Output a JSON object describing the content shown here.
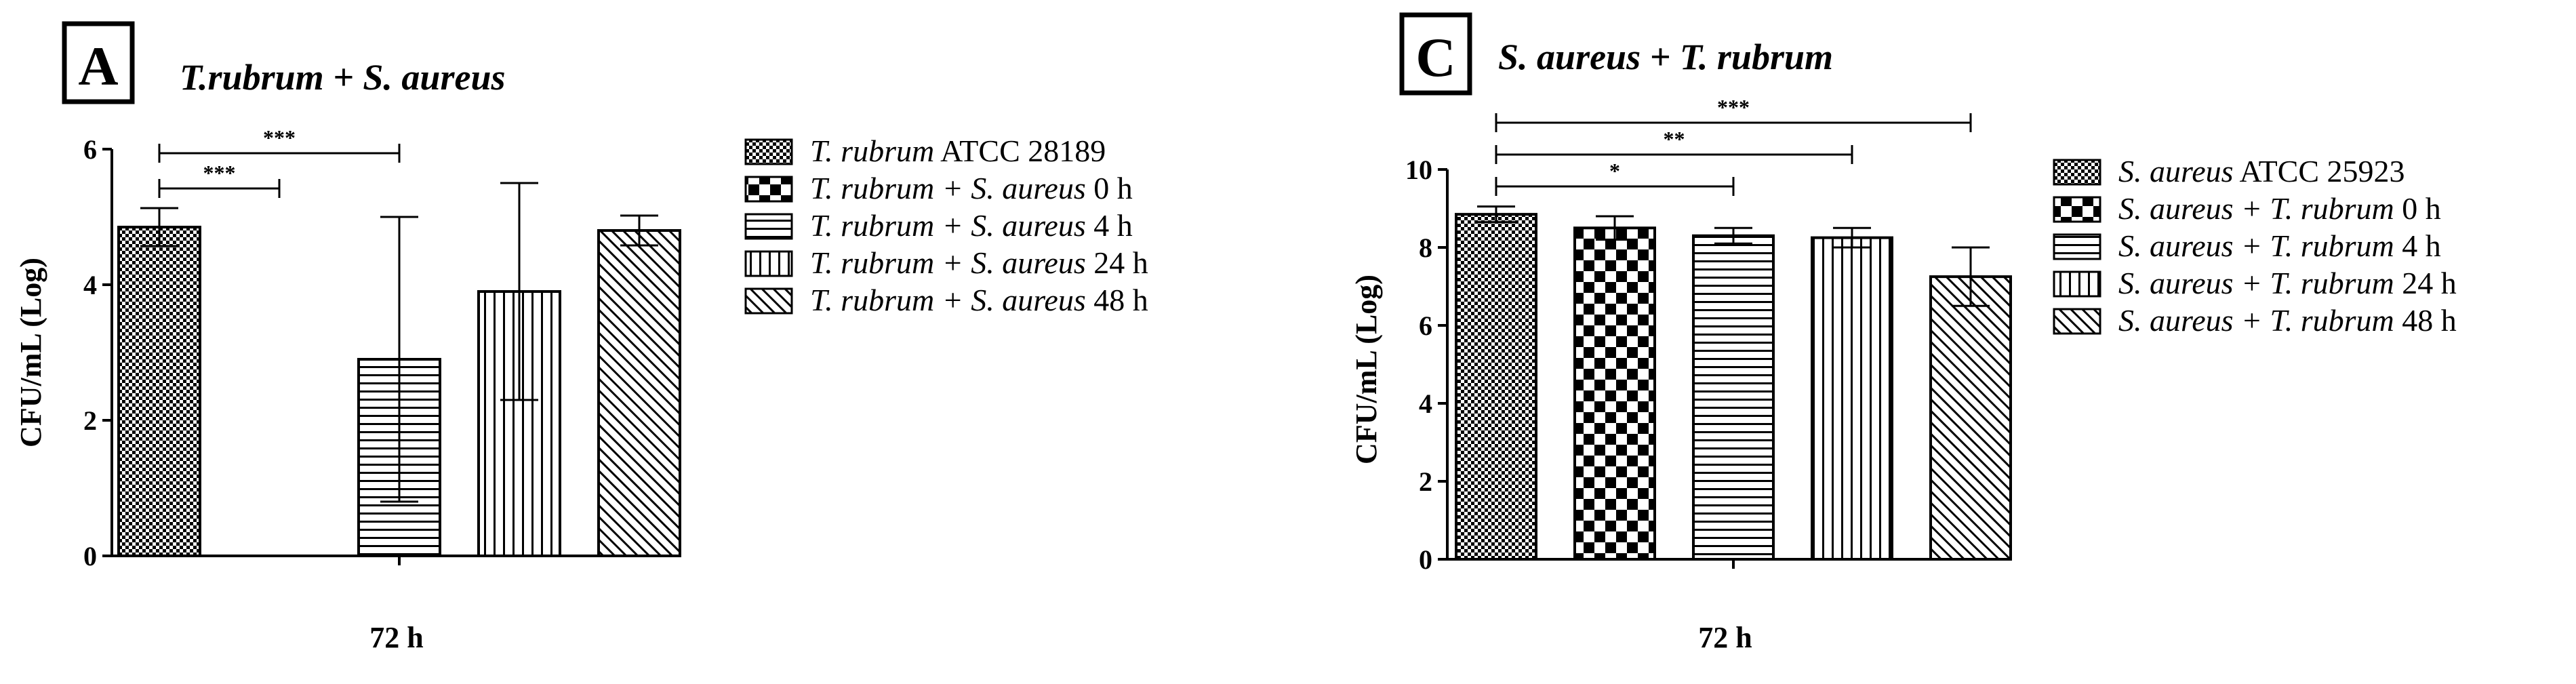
{
  "chart_data": [
    {
      "type": "bar",
      "panel_label": "A",
      "title": "T.rubrum + S. aureus",
      "xlabel": "72 h",
      "ylabel": "CFU/mL (Log)",
      "ylim": [
        0,
        6
      ],
      "yticks": [
        "0",
        "2",
        "4",
        "6"
      ],
      "categories": [
        "T. rubrum ATCC 28189",
        "T. rubrum + S. aureus 0 h",
        "T. rubrum + S. aureus 4 h",
        "T. rubrum + S. aureus 24 h",
        "T. rubrum + S. aureus 48 h"
      ],
      "legend_italic": [
        "T. rubrum",
        "T. rubrum + S. aureus",
        "T. rubrum + S. aureus",
        "T. rubrum + S. aureus",
        "T. rubrum + S. aureus"
      ],
      "legend_plain": [
        " ATCC 28189",
        " 0 h",
        " 4 h",
        " 24 h",
        " 48 h"
      ],
      "values": [
        4.85,
        0,
        2.9,
        3.9,
        4.8
      ],
      "errors": [
        0.28,
        0,
        2.1,
        1.6,
        0.22
      ],
      "patterns": [
        "grid",
        "checker",
        "hlines",
        "vlines",
        "diag"
      ],
      "significance": [
        {
          "from": 0,
          "to": 1,
          "label": "***"
        },
        {
          "from": 0,
          "to": 2,
          "label": "***"
        }
      ],
      "legend_position": "right"
    },
    {
      "type": "bar",
      "panel_label": "C",
      "title": "S. aureus + T. rubrum",
      "xlabel": "72 h",
      "ylabel": "CFU/mL (Log)",
      "ylim": [
        0,
        10
      ],
      "yticks": [
        "0",
        "2",
        "4",
        "6",
        "8",
        "10"
      ],
      "categories": [
        "S. aureus ATCC 25923",
        "S. aureus + T. rubrum 0 h",
        "S. aureus + T. rubrum 4 h",
        "S. aureus + T. rubrum 24 h",
        "S. aureus + T. rubrum 48 h"
      ],
      "legend_italic": [
        "S. aureus",
        "S. aureus + T. rubrum",
        "S. aureus + T. rubrum",
        "S. aureus + T. rubrum",
        "S. aureus + T. rubrum"
      ],
      "legend_plain": [
        " ATCC 25923",
        " 0 h",
        " 4 h",
        " 24 h",
        " 48 h"
      ],
      "values": [
        8.85,
        8.5,
        8.3,
        8.25,
        7.25
      ],
      "errors": [
        0.2,
        0.3,
        0.2,
        0.25,
        0.75
      ],
      "patterns": [
        "grid",
        "checker",
        "hlines",
        "vlines",
        "diag"
      ],
      "significance": [
        {
          "from": 0,
          "to": 2,
          "label": "*"
        },
        {
          "from": 0,
          "to": 3,
          "label": "**"
        },
        {
          "from": 0,
          "to": 4,
          "label": "***"
        }
      ],
      "legend_position": "right"
    }
  ]
}
